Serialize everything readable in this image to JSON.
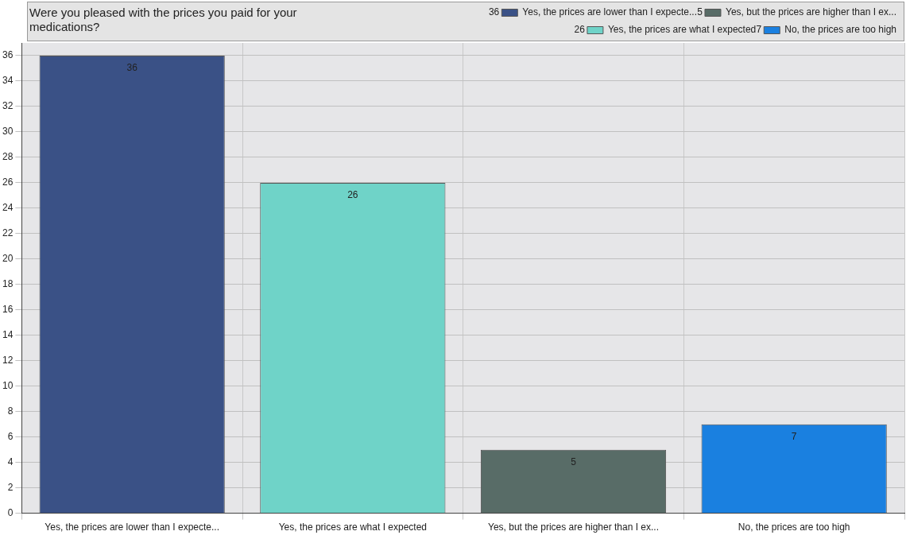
{
  "chart_data": {
    "type": "bar",
    "title": "Were you pleased with the prices you paid for your medications?",
    "categories": [
      "Yes, the prices are lower than I expecte...",
      "Yes, the prices are what I expected",
      "Yes, but the prices are higher than I ex...",
      "No, the prices are too high"
    ],
    "series": [
      {
        "name": "Yes, the prices are lower than I expecte...",
        "color": "#3a5186",
        "values": [
          36,
          null,
          null,
          null
        ]
      },
      {
        "name": "Yes, the prices are what I expected",
        "color": "#6fd3c8",
        "values": [
          null,
          26,
          null,
          null
        ]
      },
      {
        "name": "Yes, but the prices are higher than I ex...",
        "color": "#586c67",
        "values": [
          null,
          null,
          5,
          null
        ]
      },
      {
        "name": "No, the prices are too high",
        "color": "#1a80e0",
        "values": [
          null,
          null,
          null,
          7
        ]
      }
    ],
    "ylim": [
      0,
      37
    ],
    "yticks": [
      0,
      2,
      4,
      6,
      8,
      10,
      12,
      14,
      16,
      18,
      20,
      22,
      24,
      26,
      28,
      30,
      32,
      34,
      36
    ],
    "annotations": [
      "36",
      "26",
      "5",
      "7"
    ],
    "grid": true,
    "legend": "top right",
    "data_labels": true
  }
}
